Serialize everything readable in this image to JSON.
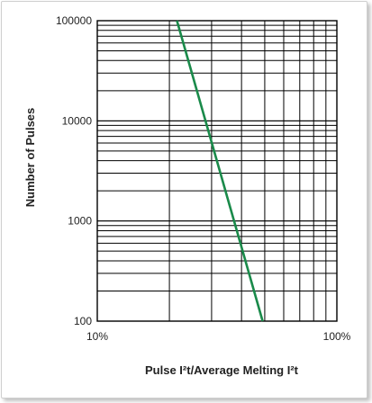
{
  "chart_data": {
    "type": "line",
    "xlabel": "Pulse I²t/Average Melting I²t",
    "ylabel": "Number of Pulses",
    "x_scale": "log",
    "y_scale": "log",
    "xlim": [
      10,
      100
    ],
    "ylim": [
      100,
      100000
    ],
    "x_tick_labels": [
      "10%",
      "100%"
    ],
    "y_tick_labels": [
      "100",
      "1000",
      "10000",
      "100000"
    ],
    "y_tick_values": [
      100,
      1000,
      10000,
      100000
    ],
    "grid": true,
    "line_color": "#1a8a4a",
    "series": [
      {
        "x": [
          21.5,
          49.0
        ],
        "y": [
          100000,
          100
        ]
      }
    ]
  }
}
